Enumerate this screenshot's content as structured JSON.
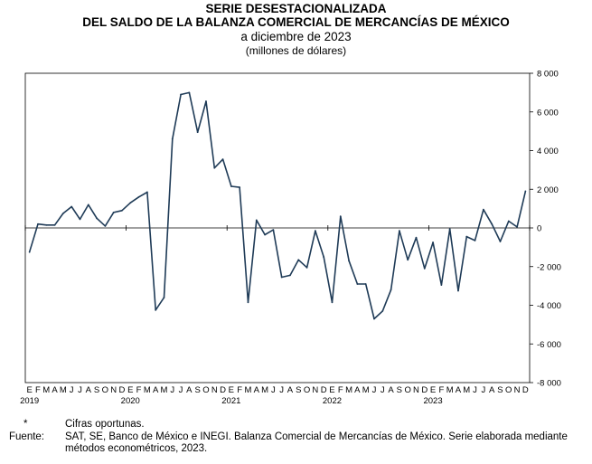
{
  "header": {
    "title_line1": "SERIE DESESTACIONALIZADA",
    "title_line2": "DEL SALDO DE LA BALANZA COMERCIAL DE MERCANCÍAS DE MÉXICO",
    "subtitle": "a diciembre de 2023",
    "units": "(millones de dólares)"
  },
  "footer": {
    "note_mark": "*",
    "note_text": "Cifras oportunas.",
    "source_label": "Fuente:",
    "source_text": "SAT, SE, Banco de México e INEGI. Balanza Comercial de Mercancías de México. Serie elaborada mediante métodos econométricos, 2023."
  },
  "colors": {
    "line": "#1f3b57",
    "axis": "#000000"
  },
  "chart_data": {
    "type": "line",
    "title": "SERIE DESESTACIONALIZADA DEL SALDO DE LA BALANZA COMERCIAL DE MERCANCÍAS DE MÉXICO",
    "subtitle": "a diciembre de 2023",
    "ylabel": "(millones de dólares)",
    "y_axis_position": "right",
    "ylim": [
      -8000,
      8000
    ],
    "yticks": [
      -8000,
      -6000,
      -4000,
      -2000,
      0,
      2000,
      4000,
      6000,
      8000
    ],
    "ytick_labels": [
      "-8 000",
      "-6 000",
      "-4 000",
      "-2 000",
      "0",
      "2 000",
      "4 000",
      "6 000",
      "8 000"
    ],
    "month_labels": [
      "E",
      "F",
      "M",
      "A",
      "M",
      "J",
      "J",
      "A",
      "S",
      "O",
      "N",
      "D"
    ],
    "years": [
      "2019",
      "2020",
      "2021",
      "2022",
      "2023"
    ],
    "grid": false,
    "series": [
      {
        "values": [
          -1250,
          200,
          150,
          150,
          750,
          1100,
          450,
          1200,
          500,
          100,
          800,
          900,
          1300,
          1600,
          1850,
          -4250,
          -3600,
          4600,
          6900,
          7000,
          4950,
          6550,
          3100,
          3550,
          2150,
          2100,
          -3850,
          400,
          -350,
          -100,
          -2550,
          -2450,
          -1650,
          -2050,
          -150,
          -1500,
          -3850,
          600,
          -1700,
          -2900,
          -2900,
          -4700,
          -4300,
          -3200,
          -150,
          -1650,
          -500,
          -2100,
          -750,
          -2950,
          -50,
          -3250,
          -450,
          -650,
          950,
          200,
          -700,
          350,
          50,
          1900
        ]
      }
    ]
  }
}
